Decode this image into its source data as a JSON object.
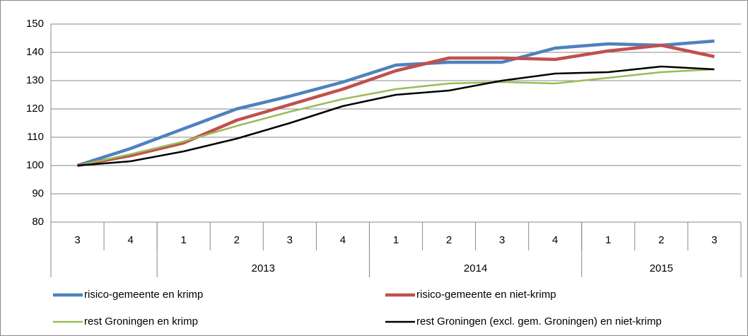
{
  "chart_data": {
    "type": "line",
    "categories": [
      "3",
      "4",
      "1",
      "2",
      "3",
      "4",
      "1",
      "2",
      "3",
      "4",
      "1",
      "2",
      "3"
    ],
    "x_groups": [
      {
        "label": null,
        "count": 2
      },
      {
        "label": "2013",
        "count": 4
      },
      {
        "label": "2014",
        "count": 4
      },
      {
        "label": "2015",
        "count": 3
      }
    ],
    "series": [
      {
        "name": "risico-gemeente en krimp",
        "color": "#4f81bd",
        "values": [
          100,
          106,
          113,
          120,
          124.5,
          129.5,
          135.5,
          136.5,
          136.5,
          141.5,
          143,
          142.5,
          144
        ]
      },
      {
        "name": "risico-gemeente en niet-krimp",
        "color": "#c0504d",
        "values": [
          100,
          103.5,
          108,
          116,
          121.5,
          127,
          133.5,
          138,
          138,
          137.5,
          140.5,
          142.5,
          138.5
        ]
      },
      {
        "name": "rest Groningen en krimp",
        "color": "#9bbb59",
        "values": [
          100,
          104,
          108.5,
          114,
          119,
          123.5,
          127,
          129,
          129.5,
          129,
          131,
          133,
          134
        ]
      },
      {
        "name": "rest Groningen (excl. gem. Groningen) en niet-krimp",
        "color": "#000000",
        "values": [
          100,
          101.5,
          105,
          109.5,
          115,
          121,
          125,
          126.5,
          130,
          132.5,
          133,
          135,
          134
        ]
      }
    ],
    "ylim": [
      80,
      150
    ],
    "yticks": [
      80,
      90,
      100,
      110,
      120,
      130,
      140,
      150
    ],
    "grid": true,
    "legend": "bottom"
  }
}
